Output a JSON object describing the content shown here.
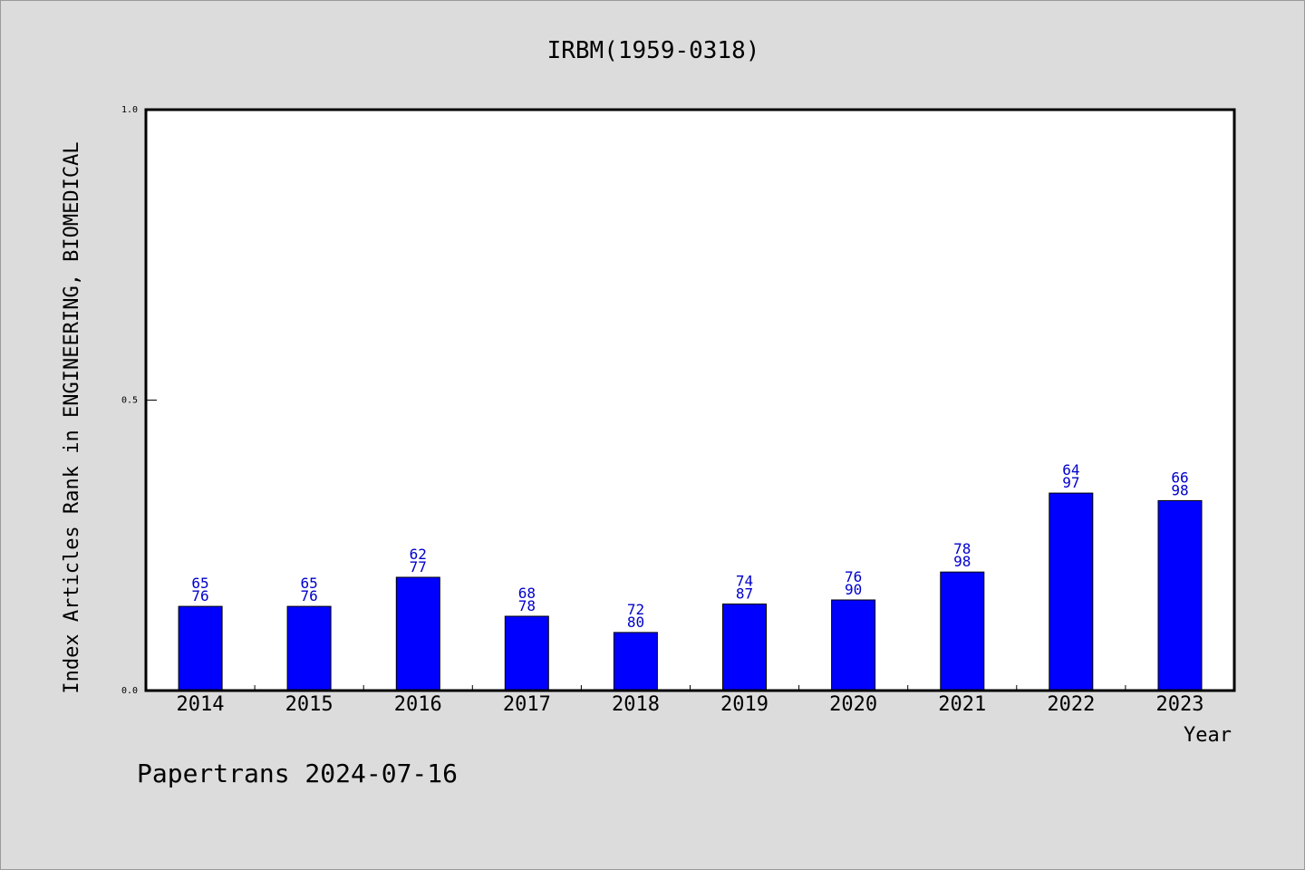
{
  "chart_data": {
    "type": "bar",
    "title": "IRBM(1959-0318)",
    "xlabel": "Year",
    "ylabel": "Index Articles Rank in ENGINEERING, BIOMEDICAL",
    "ylim": [
      0.0,
      1.0
    ],
    "yticks": [
      "0.0",
      "0.5",
      "1.0"
    ],
    "grid": false,
    "categories": [
      "2014",
      "2015",
      "2016",
      "2017",
      "2018",
      "2019",
      "2020",
      "2021",
      "2022",
      "2023"
    ],
    "rank": [
      65,
      65,
      62,
      68,
      72,
      74,
      76,
      78,
      64,
      66
    ],
    "total": [
      76,
      76,
      77,
      78,
      80,
      87,
      90,
      98,
      97,
      98
    ],
    "values": [
      0.145,
      0.145,
      0.195,
      0.128,
      0.1,
      0.149,
      0.156,
      0.204,
      0.34,
      0.327
    ],
    "bar_color": "#0000ff",
    "label_color": "#0000cc"
  },
  "footer": "Papertrans 2024-07-16",
  "colors": {
    "background": "#dcdcdc",
    "plot_background": "#ffffff"
  }
}
